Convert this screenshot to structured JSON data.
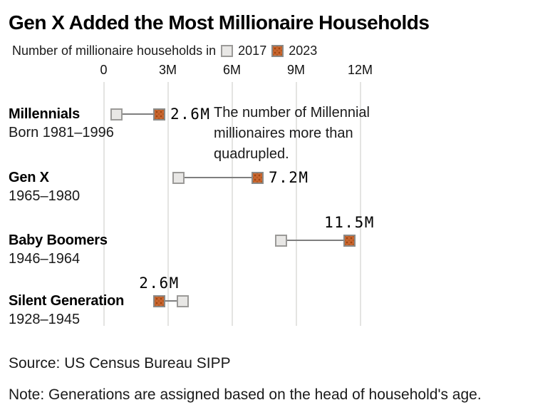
{
  "title": "Gen X Added the Most Millionaire Households",
  "legend": {
    "prefix": "Number of millionaire households in",
    "items": [
      {
        "label": "2017",
        "swatch": "gray-square-2017"
      },
      {
        "label": "2023",
        "swatch": "orange-square-2023"
      }
    ]
  },
  "chart_data": {
    "type": "dumbbell",
    "title": "Gen X Added the Most Millionaire Households",
    "subtitle": "Number of millionaire households in 2017 and 2023",
    "unit": "millions of households",
    "x_axis": {
      "ticks": [
        0,
        3,
        6,
        9,
        12
      ],
      "tick_labels": [
        "0",
        "3M",
        "6M",
        "9M",
        "12M"
      ],
      "range": [
        0,
        12.8
      ],
      "grid": true
    },
    "series_names": [
      "2017",
      "2023"
    ],
    "rows": [
      {
        "name": "Millennials",
        "sub": "Born 1981–1996",
        "value_2017": 0.6,
        "value_2023": 2.6,
        "label": "2.6M",
        "label_position": "right"
      },
      {
        "name": "Gen X",
        "sub": "1965–1980",
        "value_2017": 3.5,
        "value_2023": 7.2,
        "label": "7.2M",
        "label_position": "right"
      },
      {
        "name": "Baby Boomers",
        "sub": "1946–1964",
        "value_2017": 8.3,
        "value_2023": 11.5,
        "label": "11.5M",
        "label_position": "above"
      },
      {
        "name": "Silent Generation",
        "sub": "1928–1945",
        "value_2017": 3.7,
        "value_2023": 2.6,
        "label": "2.6M",
        "label_position": "above"
      }
    ],
    "annotation": "The number of Millennial millionaires more than quadrupled.",
    "legend_position": "top",
    "colors": {
      "marker_2017_fill": "#e8e7e5",
      "marker_2017_border": "#9b9a98",
      "marker_2023_fill": "#c96630",
      "marker_2023_texture": "#9e4610",
      "connector": "#7f7f7f",
      "gridline": "#e4e4e2"
    }
  },
  "annotation_lines": [
    "The number of Millennial",
    "millionaires more than",
    "quadrupled."
  ],
  "source": "Source: US Census Bureau SIPP",
  "note": "Note: Generations are assigned based on the head of household's age."
}
